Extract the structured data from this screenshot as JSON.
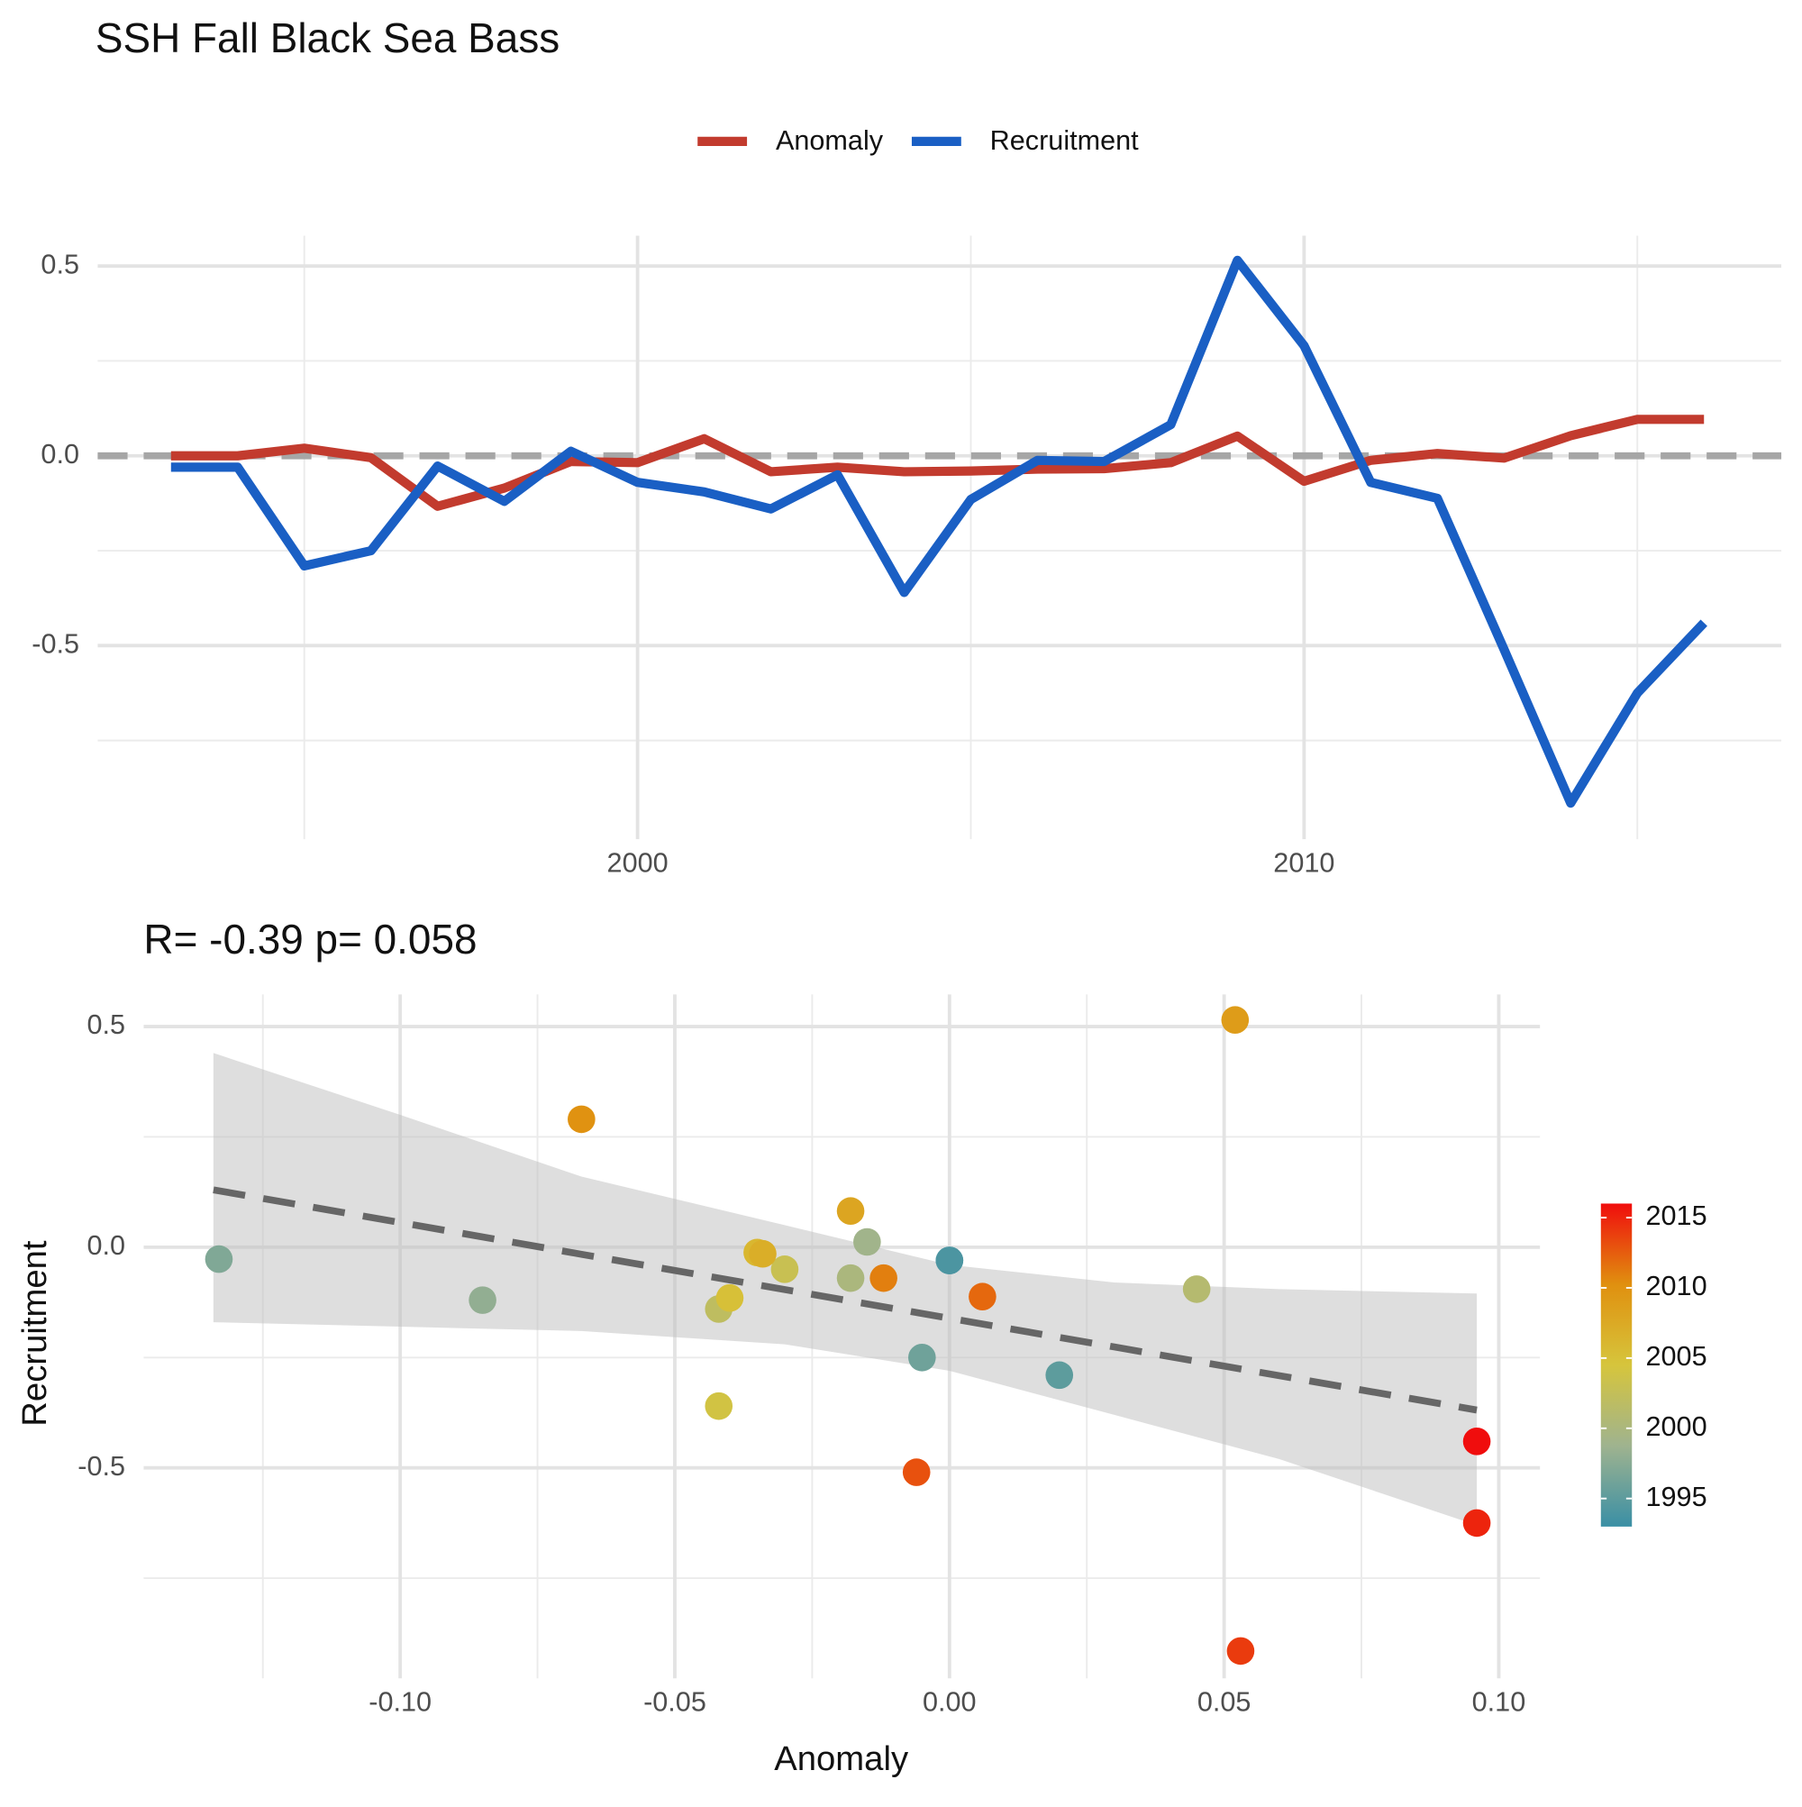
{
  "chart_data": [
    {
      "type": "line",
      "title": "SSH Fall Black Sea Bass",
      "x": [
        1993,
        1994,
        1995,
        1996,
        1997,
        1998,
        1999,
        2000,
        2001,
        2002,
        2003,
        2004,
        2005,
        2006,
        2007,
        2008,
        2009,
        2010,
        2011,
        2012,
        2013,
        2014,
        2015,
        2016
      ],
      "series": [
        {
          "name": "Anomaly",
          "color": "#c23b2e",
          "values": [
            0.0,
            0.0,
            0.02,
            -0.005,
            -0.133,
            -0.085,
            -0.015,
            -0.018,
            0.045,
            -0.042,
            -0.03,
            -0.042,
            -0.04,
            -0.035,
            -0.034,
            -0.018,
            0.052,
            -0.067,
            -0.012,
            0.006,
            -0.006,
            0.053,
            0.096,
            0.096
          ]
        },
        {
          "name": "Recruitment",
          "color": "#1a5fc4",
          "values": [
            -0.03,
            -0.03,
            -0.29,
            -0.25,
            -0.027,
            -0.12,
            0.012,
            -0.07,
            -0.095,
            -0.14,
            -0.05,
            -0.36,
            -0.115,
            -0.012,
            -0.015,
            0.082,
            0.515,
            0.29,
            -0.07,
            -0.112,
            -0.51,
            -0.915,
            -0.625,
            -0.44
          ]
        }
      ],
      "xlim": [
        1991.9,
        2017.16
      ],
      "xticks": [
        2000,
        2010
      ],
      "ylim": [
        -1.01,
        0.58
      ],
      "yticks": [
        -0.5,
        {
          "value": 0,
          "label": "0.0"
        },
        0.5
      ],
      "reference_line": 0,
      "grid": true,
      "legend": "top"
    },
    {
      "type": "scatter",
      "title": "R= -0.39  p= 0.058",
      "xlabel": "Anomaly",
      "ylabel": "Recruitment",
      "x": [
        0.0,
        0.0,
        0.02,
        -0.005,
        -0.133,
        -0.085,
        -0.015,
        -0.018,
        0.045,
        -0.042,
        -0.03,
        -0.042,
        -0.04,
        -0.035,
        -0.034,
        -0.018,
        0.052,
        -0.067,
        -0.012,
        0.006,
        -0.006,
        0.053,
        0.096,
        0.096
      ],
      "y": [
        -0.03,
        -0.03,
        -0.29,
        -0.25,
        -0.027,
        -0.12,
        0.012,
        -0.07,
        -0.095,
        -0.14,
        -0.05,
        -0.36,
        -0.115,
        -0.012,
        -0.015,
        0.082,
        0.515,
        0.29,
        -0.07,
        -0.112,
        -0.51,
        -0.915,
        -0.625,
        -0.44
      ],
      "color_values": [
        1993,
        1994,
        1995,
        1996,
        1997,
        1998,
        1999,
        2000,
        2001,
        2002,
        2003,
        2004,
        2005,
        2006,
        2007,
        2008,
        2009,
        2010,
        2011,
        2012,
        2013,
        2014,
        2015,
        2016
      ],
      "colorscale": [
        "#3a8fa5",
        "#9fb38f",
        "#d6c53c",
        "#e0900f",
        "#f00d0d"
      ],
      "colorbar_lim": [
        1993,
        2016
      ],
      "colorbar_ticks": [
        1995,
        2000,
        2005,
        2010,
        2015
      ],
      "fit": {
        "x": [
          -0.134,
          -0.1,
          -0.067,
          -0.03,
          0,
          0.03,
          0.06,
          0.096
        ],
        "y": [
          0.13,
          0.056,
          -0.016,
          -0.096,
          -0.161,
          -0.226,
          -0.291,
          -0.369
        ],
        "lower": [
          -0.17,
          -0.18,
          -0.19,
          -0.22,
          -0.28,
          -0.38,
          -0.48,
          -0.63
        ],
        "upper": [
          0.44,
          0.3,
          0.16,
          0.05,
          -0.04,
          -0.08,
          -0.095,
          -0.105
        ]
      },
      "xlim": [
        -0.1467,
        0.1075
      ],
      "xticks": [
        {
          "value": -0.1,
          "label": "-0.10"
        },
        {
          "value": -0.05,
          "label": "-0.05"
        },
        {
          "value": 0,
          "label": "0.00"
        },
        {
          "value": 0.05,
          "label": "0.05"
        },
        {
          "value": 0.1,
          "label": "0.10"
        }
      ],
      "ylim": [
        -0.977,
        0.573
      ],
      "yticks": [
        -0.5,
        {
          "value": 0,
          "label": "0.0"
        },
        0.5
      ],
      "grid": true
    }
  ]
}
